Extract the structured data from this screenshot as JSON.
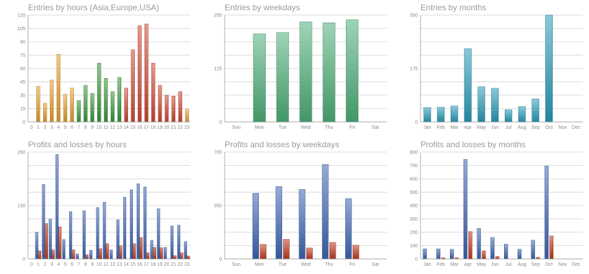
{
  "chart_data": [
    {
      "id": "entries-hours",
      "type": "bar",
      "title": "Entries by hours (Asia,Europe,USA)",
      "categories": [
        "0",
        "1",
        "2",
        "3",
        "4",
        "5",
        "6",
        "7",
        "8",
        "9",
        "10",
        "11",
        "12",
        "13",
        "14",
        "15",
        "16",
        "17",
        "18",
        "19",
        "20",
        "21",
        "22",
        "23"
      ],
      "series": [
        {
          "name": "Entries",
          "values": [
            0,
            40,
            21,
            47,
            76,
            31,
            38,
            24,
            41,
            32,
            66,
            49,
            34,
            50,
            38,
            81,
            108,
            110,
            66,
            41,
            30,
            29,
            34,
            14
          ]
        }
      ],
      "bar_colors": [
        "#e9a12f",
        "#e9a12f",
        "#e9a12f",
        "#e9a12f",
        "#e9a12f",
        "#e9a12f",
        "#e9a12f",
        "#3c9a3c",
        "#3c9a3c",
        "#3c9a3c",
        "#3c9a3c",
        "#3c9a3c",
        "#3c9a3c",
        "#3c9a3c",
        "#d24a34",
        "#d24a34",
        "#d24a34",
        "#d24a34",
        "#d24a34",
        "#d24a34",
        "#d24a34",
        "#d24a34",
        "#d24a34",
        "#e9a12f"
      ],
      "yticks": [
        0,
        15,
        30,
        45,
        60,
        75,
        90,
        105,
        120
      ],
      "ylim": [
        0,
        120
      ],
      "grid": true
    },
    {
      "id": "entries-weekdays",
      "type": "bar",
      "title": "Entries by weekdays",
      "categories": [
        "Sun",
        "Mon",
        "Tue",
        "Wed",
        "Thu",
        "Fri",
        "Sat"
      ],
      "series": [
        {
          "name": "Entries",
          "values": [
            0,
            206,
            209,
            234,
            232,
            239,
            0
          ]
        }
      ],
      "bar_colors": [
        "#4fb07a"
      ],
      "yticks": [
        0,
        125,
        250
      ],
      "ylim": [
        0,
        250
      ],
      "grid": true
    },
    {
      "id": "entries-months",
      "type": "bar",
      "title": "Entries by months",
      "categories": [
        "Jan",
        "Feb",
        "Mar",
        "Apr",
        "May",
        "Jun",
        "Jul",
        "Aug",
        "Sep",
        "Oct",
        "Nov",
        "Dec"
      ],
      "series": [
        {
          "name": "Entries",
          "values": [
            47,
            48,
            52,
            240,
            115,
            110,
            40,
            50,
            75,
            350,
            0,
            0
          ]
        }
      ],
      "bar_colors": [
        "#2a9cb9"
      ],
      "yticks": [
        0,
        175,
        350
      ],
      "ylim": [
        0,
        350
      ],
      "grid": true
    },
    {
      "id": "pl-hours",
      "type": "bar",
      "title": "Profits and losses by hours",
      "categories": [
        "0",
        "1",
        "2",
        "3",
        "4",
        "5",
        "6",
        "7",
        "8",
        "9",
        "10",
        "11",
        "12",
        "13",
        "14",
        "15",
        "16",
        "17",
        "18",
        "19",
        "20",
        "21",
        "22",
        "23"
      ],
      "series": [
        {
          "name": "Profits",
          "values": [
            0,
            65,
            181,
            97,
            254,
            47,
            115,
            12,
            117,
            21,
            125,
            138,
            22,
            95,
            150,
            168,
            183,
            175,
            45,
            122,
            28,
            80,
            82,
            42
          ]
        },
        {
          "name": "Losses",
          "values": [
            0,
            20,
            86,
            22,
            78,
            0,
            22,
            0,
            10,
            0,
            25,
            37,
            0,
            32,
            0,
            37,
            52,
            15,
            28,
            27,
            0,
            8,
            15,
            7
          ]
        }
      ],
      "series_colors": [
        "#3e66b5",
        "#c23b22"
      ],
      "yticks": [
        0,
        130,
        260
      ],
      "ylim": [
        0,
        260
      ],
      "grid": true
    },
    {
      "id": "pl-weekdays",
      "type": "bar",
      "title": "Profits and losses by weekdays",
      "categories": [
        "Sun",
        "Mon",
        "Tue",
        "Wed",
        "Thu",
        "Fri",
        "Sat"
      ],
      "series": [
        {
          "name": "Profits",
          "values": [
            0,
            430,
            474,
            455,
            618,
            395,
            0
          ]
        },
        {
          "name": "Losses",
          "values": [
            0,
            95,
            128,
            72,
            108,
            90,
            0
          ]
        }
      ],
      "series_colors": [
        "#3e66b5",
        "#c23b22"
      ],
      "yticks": [
        0,
        350,
        700
      ],
      "ylim": [
        0,
        700
      ],
      "grid": true
    },
    {
      "id": "pl-months",
      "type": "bar",
      "title": "Profits and losses by months",
      "categories": [
        "Jan",
        "Feb",
        "Mar",
        "Apr",
        "May",
        "Jun",
        "Jul",
        "Aug",
        "Sep",
        "Oct",
        "Nov",
        "Dec"
      ],
      "series": [
        {
          "name": "Profits",
          "values": [
            75,
            75,
            72,
            745,
            228,
            160,
            110,
            72,
            140,
            695,
            0,
            0
          ]
        },
        {
          "name": "Losses",
          "values": [
            0,
            8,
            8,
            205,
            60,
            18,
            0,
            0,
            12,
            172,
            0,
            0
          ]
        }
      ],
      "series_colors": [
        "#3e66b5",
        "#c23b22"
      ],
      "yticks": [
        0,
        100,
        200,
        300,
        400,
        500,
        600,
        700,
        800
      ],
      "ylim": [
        0,
        800
      ],
      "grid": true
    }
  ]
}
